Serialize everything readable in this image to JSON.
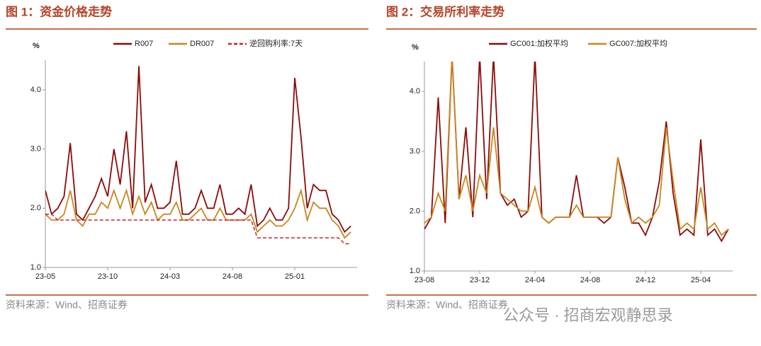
{
  "chart_data": [
    {
      "type": "line",
      "title": "图 1：资金价格走势",
      "y_label": "%",
      "source": "资料来源：Wind、招商证券",
      "categories": [
        "23-05",
        null,
        null,
        null,
        null,
        null,
        null,
        null,
        null,
        null,
        "23-10",
        null,
        null,
        null,
        null,
        null,
        null,
        null,
        null,
        null,
        "24-03",
        null,
        null,
        null,
        null,
        null,
        null,
        null,
        null,
        null,
        "24-08",
        null,
        null,
        null,
        null,
        null,
        null,
        null,
        null,
        null,
        "25-01",
        null,
        null,
        null,
        null,
        null,
        null,
        null,
        null,
        null
      ],
      "series": [
        {
          "name": "R007",
          "color": "#8b0a0a",
          "values": [
            2.3,
            1.9,
            2.0,
            2.2,
            3.1,
            1.9,
            1.8,
            2.0,
            2.2,
            2.5,
            2.2,
            3.0,
            2.4,
            3.3,
            2.0,
            4.4,
            2.1,
            2.4,
            2.0,
            2.0,
            2.1,
            2.8,
            1.9,
            1.9,
            2.0,
            2.3,
            2.0,
            2.0,
            2.4,
            1.9,
            1.9,
            2.0,
            1.9,
            2.4,
            1.7,
            1.8,
            2.0,
            1.8,
            1.8,
            2.0,
            4.2,
            3.2,
            2.0,
            2.4,
            2.3,
            2.3,
            1.9,
            1.8,
            1.6,
            1.7
          ]
        },
        {
          "name": "DR007",
          "color": "#c8861e",
          "values": [
            1.9,
            1.8,
            1.8,
            1.9,
            2.3,
            1.8,
            1.7,
            1.9,
            1.9,
            2.1,
            2.0,
            2.3,
            2.0,
            2.3,
            1.9,
            2.2,
            1.9,
            2.1,
            1.8,
            1.9,
            1.9,
            2.1,
            1.8,
            1.8,
            1.9,
            2.0,
            1.8,
            1.8,
            2.0,
            1.8,
            1.8,
            1.8,
            1.8,
            1.9,
            1.6,
            1.7,
            1.8,
            1.7,
            1.7,
            1.8,
            2.0,
            2.3,
            1.8,
            2.1,
            2.0,
            2.0,
            1.8,
            1.7,
            1.5,
            1.6
          ]
        },
        {
          "name": "逆回购利率:7天",
          "color": "#c0282d",
          "line_style": "dashed",
          "values": [
            1.9,
            1.9,
            1.8,
            1.8,
            1.8,
            1.8,
            1.8,
            1.8,
            1.8,
            1.8,
            1.8,
            1.8,
            1.8,
            1.8,
            1.8,
            1.8,
            1.8,
            1.8,
            1.8,
            1.8,
            1.8,
            1.8,
            1.8,
            1.8,
            1.8,
            1.8,
            1.8,
            1.8,
            1.8,
            1.8,
            1.8,
            1.8,
            1.8,
            1.8,
            1.5,
            1.5,
            1.5,
            1.5,
            1.5,
            1.5,
            1.5,
            1.5,
            1.5,
            1.5,
            1.5,
            1.5,
            1.5,
            1.5,
            1.4,
            1.4
          ]
        }
      ],
      "ylim": [
        1,
        4.5
      ],
      "yticks": [
        {
          "value": 1,
          "label": "1.0"
        },
        {
          "value": 2,
          "label": "2.0"
        },
        {
          "value": 3,
          "label": "3.0"
        },
        {
          "value": 4,
          "label": "4.0"
        }
      ]
    },
    {
      "type": "line",
      "title": "图 2：交易所利率走势",
      "y_label": "%",
      "source": "资料来源：Wind、招商证券",
      "categories": [
        "23-08",
        null,
        null,
        null,
        null,
        null,
        null,
        null,
        "23-12",
        null,
        null,
        null,
        null,
        null,
        null,
        null,
        "24-04",
        null,
        null,
        null,
        null,
        null,
        null,
        null,
        "24-08",
        null,
        null,
        null,
        null,
        null,
        null,
        null,
        "24-12",
        null,
        null,
        null,
        null,
        null,
        null,
        null,
        "25-04",
        null,
        null,
        null,
        null
      ],
      "series": [
        {
          "name": "GC001:加权平均",
          "color": "#8b0a0a",
          "values": [
            1.7,
            1.9,
            3.9,
            1.8,
            4.6,
            2.2,
            3.4,
            1.9,
            4.6,
            2.2,
            4.6,
            2.3,
            2.1,
            2.2,
            1.9,
            2.0,
            4.6,
            1.9,
            1.8,
            1.9,
            1.9,
            1.9,
            2.6,
            1.9,
            1.9,
            1.9,
            1.8,
            1.9,
            2.9,
            2.4,
            1.8,
            1.8,
            1.6,
            1.9,
            2.5,
            3.5,
            2.3,
            1.6,
            1.7,
            1.6,
            3.2,
            1.6,
            1.7,
            1.5,
            1.7
          ]
        },
        {
          "name": "GC007:加权平均",
          "color": "#c8861e",
          "values": [
            1.8,
            1.9,
            2.3,
            2.0,
            4.6,
            2.2,
            2.6,
            2.0,
            2.6,
            2.3,
            3.4,
            2.3,
            2.2,
            2.1,
            2.0,
            2.0,
            2.4,
            1.9,
            1.8,
            1.9,
            1.9,
            1.9,
            2.1,
            1.9,
            1.9,
            1.9,
            1.9,
            1.9,
            2.9,
            2.2,
            1.8,
            1.9,
            1.8,
            1.9,
            2.1,
            3.4,
            2.5,
            1.7,
            1.8,
            1.7,
            2.4,
            1.7,
            1.8,
            1.6,
            1.7
          ]
        }
      ],
      "ylim": [
        1,
        4.5
      ],
      "yticks": [
        {
          "value": 1,
          "label": "1.0"
        },
        {
          "value": 2,
          "label": "2.0"
        },
        {
          "value": 3,
          "label": "3.0"
        },
        {
          "value": 4,
          "label": "4.0"
        }
      ]
    }
  ],
  "watermark": "公众号 · 招商宏观静思录"
}
